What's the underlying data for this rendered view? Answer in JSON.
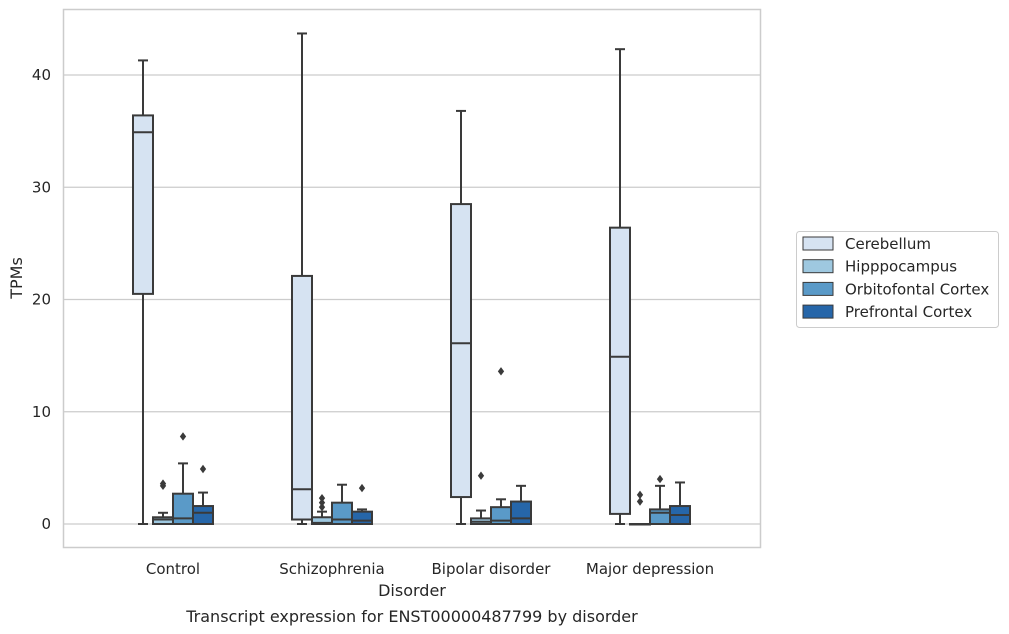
{
  "chart_data": {
    "type": "box",
    "title": "",
    "caption": "Transcript expression for ENST00000487799 by disorder",
    "xlabel": "Disorder",
    "ylabel": "TPMs",
    "ylim": [
      -2,
      46
    ],
    "yticks": [
      0,
      10,
      20,
      30,
      40
    ],
    "grid": "horizontal",
    "legend_position": "right",
    "categories": [
      "Control",
      "Schizophrenia",
      "Bipolar disorder",
      "Major depression"
    ],
    "series": [
      {
        "name": "Cerebellum",
        "color": "#d6e3f2",
        "boxes": [
          {
            "min": 0,
            "q1": 20.5,
            "median": 34.9,
            "q3": 36.4,
            "max": 41.3,
            "outliers": []
          },
          {
            "min": 0,
            "q1": 0.4,
            "median": 3.1,
            "q3": 22.1,
            "max": 43.7,
            "outliers": []
          },
          {
            "min": 0,
            "q1": 2.4,
            "median": 16.1,
            "q3": 28.5,
            "max": 36.8,
            "outliers": []
          },
          {
            "min": 0,
            "q1": 0.9,
            "median": 14.9,
            "q3": 26.4,
            "max": 42.3,
            "outliers": []
          }
        ]
      },
      {
        "name": "Hipppocampus",
        "color": "#9ec8e0",
        "boxes": [
          {
            "min": 0,
            "q1": 0,
            "median": 0.4,
            "q3": 0.6,
            "max": 1.0,
            "outliers": [
              3.4,
              3.6
            ]
          },
          {
            "min": 0,
            "q1": 0,
            "median": 0.1,
            "q3": 0.6,
            "max": 1.1,
            "outliers": [
              1.5,
              1.9,
              2.3
            ]
          },
          {
            "min": 0,
            "q1": 0,
            "median": 0.2,
            "q3": 0.5,
            "max": 1.2,
            "outliers": [
              4.3
            ]
          },
          {
            "min": 0,
            "q1": 0,
            "median": 0,
            "q3": 0,
            "max": 0,
            "outliers": [
              2.0,
              2.6
            ]
          }
        ]
      },
      {
        "name": "Orbitofontal Cortex",
        "color": "#5a9ac8",
        "boxes": [
          {
            "min": 0,
            "q1": 0,
            "median": 0.5,
            "q3": 2.7,
            "max": 5.4,
            "outliers": [
              7.8
            ]
          },
          {
            "min": 0,
            "q1": 0,
            "median": 0.4,
            "q3": 1.9,
            "max": 3.5,
            "outliers": []
          },
          {
            "min": 0,
            "q1": 0,
            "median": 0.3,
            "q3": 1.5,
            "max": 2.2,
            "outliers": [
              13.6
            ]
          },
          {
            "min": 0,
            "q1": 0,
            "median": 1.0,
            "q3": 1.3,
            "max": 3.4,
            "outliers": [
              4.0
            ]
          }
        ]
      },
      {
        "name": "Prefrontal Cortex",
        "color": "#2666a9",
        "boxes": [
          {
            "min": 0,
            "q1": 0,
            "median": 1.0,
            "q3": 1.6,
            "max": 2.8,
            "outliers": [
              4.9
            ]
          },
          {
            "min": 0,
            "q1": 0,
            "median": 0.3,
            "q3": 1.1,
            "max": 1.3,
            "outliers": [
              3.2
            ]
          },
          {
            "min": 0,
            "q1": 0,
            "median": 0.5,
            "q3": 2.0,
            "max": 3.4,
            "outliers": []
          },
          {
            "min": 0,
            "q1": 0,
            "median": 0.8,
            "q3": 1.6,
            "max": 3.7,
            "outliers": []
          }
        ]
      }
    ]
  }
}
